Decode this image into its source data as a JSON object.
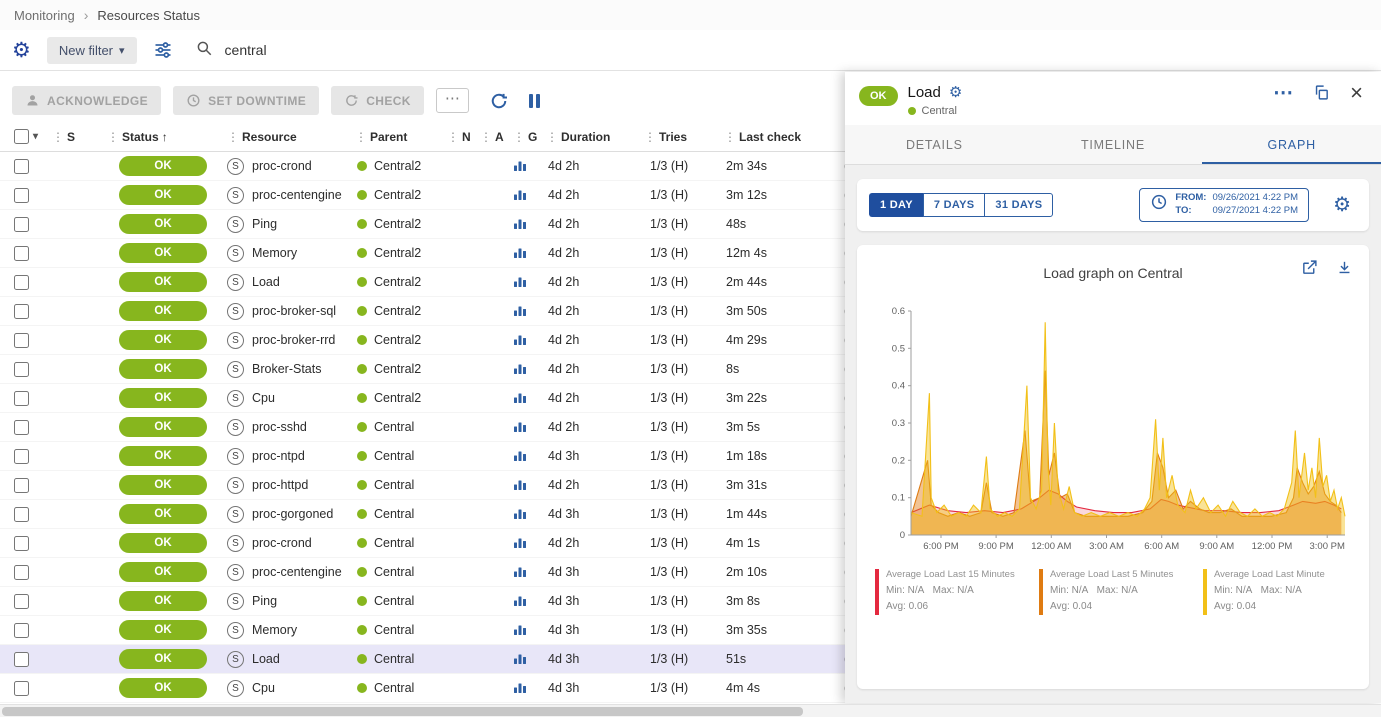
{
  "colors": {
    "accent": "#2e5fa3",
    "accent_dark": "#1f4e9e",
    "ok_green": "#87b61e",
    "selected_row": "#e8e6f8"
  },
  "icons": {
    "grip": "⋮",
    "caret": "▾",
    "sort_asc": "↑",
    "more": "⋯",
    "close": "×",
    "gear": "⚙",
    "service_badge": "S",
    "separator": "›"
  },
  "breadcrumb": {
    "items": [
      {
        "label": "Monitoring"
      },
      {
        "label": "Resources Status"
      }
    ]
  },
  "filter_bar": {
    "new_filter_label": "New filter",
    "search_value": "central"
  },
  "toolbar": {
    "acknowledge_label": "ACKNOWLEDGE",
    "set_downtime_label": "SET DOWNTIME",
    "check_label": "CHECK"
  },
  "table": {
    "columns": [
      {
        "label": "S"
      },
      {
        "label": "Status",
        "sorted": true
      },
      {
        "label": "Resource"
      },
      {
        "label": "Parent"
      },
      {
        "label": "N"
      },
      {
        "label": "A"
      },
      {
        "label": "G"
      },
      {
        "label": "Duration"
      },
      {
        "label": "Tries"
      },
      {
        "label": "Last check"
      },
      {
        "label": ""
      }
    ],
    "rows": [
      {
        "status": "OK",
        "resource": "proc-crond",
        "parent": "Central2",
        "duration": "4d 2h",
        "tries": "1/3 (H)",
        "last_check": "2m 34s",
        "info": "(",
        "selected": false
      },
      {
        "status": "OK",
        "resource": "proc-centengine",
        "parent": "Central2",
        "duration": "4d 2h",
        "tries": "1/3 (H)",
        "last_check": "3m 12s",
        "info": "(",
        "selected": false
      },
      {
        "status": "OK",
        "resource": "Ping",
        "parent": "Central2",
        "duration": "4d 2h",
        "tries": "1/3 (H)",
        "last_check": "48s",
        "info": "(",
        "selected": false
      },
      {
        "status": "OK",
        "resource": "Memory",
        "parent": "Central2",
        "duration": "4d 2h",
        "tries": "1/3 (H)",
        "last_check": "12m 4s",
        "info": "(",
        "selected": false
      },
      {
        "status": "OK",
        "resource": "Load",
        "parent": "Central2",
        "duration": "4d 2h",
        "tries": "1/3 (H)",
        "last_check": "2m 44s",
        "info": "(",
        "selected": false
      },
      {
        "status": "OK",
        "resource": "proc-broker-sql",
        "parent": "Central2",
        "duration": "4d 2h",
        "tries": "1/3 (H)",
        "last_check": "3m 50s",
        "info": "(",
        "selected": false
      },
      {
        "status": "OK",
        "resource": "proc-broker-rrd",
        "parent": "Central2",
        "duration": "4d 2h",
        "tries": "1/3 (H)",
        "last_check": "4m 29s",
        "info": "(",
        "selected": false
      },
      {
        "status": "OK",
        "resource": "Broker-Stats",
        "parent": "Central2",
        "duration": "4d 2h",
        "tries": "1/3 (H)",
        "last_check": "8s",
        "info": "(",
        "selected": false
      },
      {
        "status": "OK",
        "resource": "Cpu",
        "parent": "Central2",
        "duration": "4d 2h",
        "tries": "1/3 (H)",
        "last_check": "3m 22s",
        "info": "(",
        "selected": false
      },
      {
        "status": "OK",
        "resource": "proc-sshd",
        "parent": "Central",
        "duration": "4d 2h",
        "tries": "1/3 (H)",
        "last_check": "3m 5s",
        "info": "(",
        "selected": false
      },
      {
        "status": "OK",
        "resource": "proc-ntpd",
        "parent": "Central",
        "duration": "4d 3h",
        "tries": "1/3 (H)",
        "last_check": "1m 18s",
        "info": "(",
        "selected": false
      },
      {
        "status": "OK",
        "resource": "proc-httpd",
        "parent": "Central",
        "duration": "4d 2h",
        "tries": "1/3 (H)",
        "last_check": "3m 31s",
        "info": "(",
        "selected": false
      },
      {
        "status": "OK",
        "resource": "proc-gorgoned",
        "parent": "Central",
        "duration": "4d 3h",
        "tries": "1/3 (H)",
        "last_check": "1m 44s",
        "info": "(",
        "selected": false
      },
      {
        "status": "OK",
        "resource": "proc-crond",
        "parent": "Central",
        "duration": "4d 2h",
        "tries": "1/3 (H)",
        "last_check": "4m 1s",
        "info": "(",
        "selected": false
      },
      {
        "status": "OK",
        "resource": "proc-centengine",
        "parent": "Central",
        "duration": "4d 3h",
        "tries": "1/3 (H)",
        "last_check": "2m 10s",
        "info": "(",
        "selected": false
      },
      {
        "status": "OK",
        "resource": "Ping",
        "parent": "Central",
        "duration": "4d 3h",
        "tries": "1/3 (H)",
        "last_check": "3m 8s",
        "info": "(",
        "selected": false
      },
      {
        "status": "OK",
        "resource": "Memory",
        "parent": "Central",
        "duration": "4d 3h",
        "tries": "1/3 (H)",
        "last_check": "3m 35s",
        "info": "(",
        "selected": false
      },
      {
        "status": "OK",
        "resource": "Load",
        "parent": "Central",
        "duration": "4d 3h",
        "tries": "1/3 (H)",
        "last_check": "51s",
        "info": "(",
        "selected": true
      },
      {
        "status": "OK",
        "resource": "Cpu",
        "parent": "Central",
        "duration": "4d 3h",
        "tries": "1/3 (H)",
        "last_check": "4m 4s",
        "info": "(",
        "selected": false
      }
    ]
  },
  "panel": {
    "status": "OK",
    "title": "Load",
    "host": "Central",
    "tabs": [
      {
        "label": "DETAILS"
      },
      {
        "label": "TIMELINE"
      },
      {
        "label": "GRAPH"
      }
    ],
    "active_tab": "GRAPH",
    "time_select": {
      "day1": "1 DAY",
      "day7": "7 DAYS",
      "day31": "31 DAYS",
      "from_label": "FROM:",
      "from_value": "09/26/2021 4:22 PM",
      "to_label": "TO:",
      "to_value": "09/27/2021 4:22 PM"
    }
  },
  "chart_data": {
    "type": "area",
    "title": "Load graph on Central",
    "xlabel": "",
    "ylabel": "",
    "ylim": [
      0,
      0.6
    ],
    "y_ticks": [
      0,
      0.1,
      0.2,
      0.3,
      0.4,
      0.5,
      0.6
    ],
    "x_max": 23.6,
    "x_ticks": [
      {
        "t": 1.63,
        "label": "6:00 PM"
      },
      {
        "t": 4.63,
        "label": "9:00 PM"
      },
      {
        "t": 7.63,
        "label": "12:00 AM"
      },
      {
        "t": 10.63,
        "label": "3:00 AM"
      },
      {
        "t": 13.63,
        "label": "6:00 AM"
      },
      {
        "t": 16.63,
        "label": "9:00 AM"
      },
      {
        "t": 19.63,
        "label": "12:00 PM"
      },
      {
        "t": 22.63,
        "label": "3:00 PM"
      }
    ],
    "series": [
      {
        "name": "Average Load Last 15 Minutes",
        "color": "#e4293f",
        "fill": "rgba(228,41,63,0.18)",
        "stats_minmax": "Min: N/A   Max: N/A",
        "stats_avg": "Avg: 0.06",
        "points": [
          [
            0,
            0.06
          ],
          [
            1,
            0.08
          ],
          [
            2,
            0.065
          ],
          [
            3,
            0.06
          ],
          [
            4,
            0.065
          ],
          [
            5,
            0.06
          ],
          [
            6,
            0.07
          ],
          [
            7,
            0.1
          ],
          [
            7.5,
            0.12
          ],
          [
            8,
            0.11
          ],
          [
            8.5,
            0.09
          ],
          [
            9,
            0.075
          ],
          [
            10,
            0.065
          ],
          [
            11,
            0.06
          ],
          [
            12,
            0.06
          ],
          [
            13,
            0.07
          ],
          [
            13.6,
            0.095
          ],
          [
            14,
            0.09
          ],
          [
            14.5,
            0.08
          ],
          [
            15,
            0.075
          ],
          [
            16,
            0.065
          ],
          [
            17,
            0.065
          ],
          [
            18,
            0.06
          ],
          [
            19,
            0.06
          ],
          [
            20,
            0.065
          ],
          [
            20.8,
            0.08
          ],
          [
            21.3,
            0.09
          ],
          [
            22,
            0.085
          ],
          [
            22.5,
            0.09
          ],
          [
            23,
            0.08
          ],
          [
            23.4,
            0.07
          ]
        ]
      },
      {
        "name": "Average Load Last 5 Minutes",
        "color": "#df7b12",
        "fill": "rgba(223,123,18,0.45)",
        "stats_minmax": "Min: N/A   Max: N/A",
        "stats_avg": "Avg: 0.04",
        "points": [
          [
            0,
            0.05
          ],
          [
            0.9,
            0.2
          ],
          [
            1.1,
            0.08
          ],
          [
            1.5,
            0.06
          ],
          [
            2,
            0.05
          ],
          [
            2.6,
            0.06
          ],
          [
            3.2,
            0.05
          ],
          [
            3.8,
            0.06
          ],
          [
            4.1,
            0.14
          ],
          [
            4.4,
            0.06
          ],
          [
            5,
            0.05
          ],
          [
            5.6,
            0.06
          ],
          [
            6.2,
            0.28
          ],
          [
            6.5,
            0.09
          ],
          [
            7,
            0.1
          ],
          [
            7.3,
            0.44
          ],
          [
            7.5,
            0.16
          ],
          [
            7.8,
            0.22
          ],
          [
            8.1,
            0.1
          ],
          [
            8.5,
            0.11
          ],
          [
            8.9,
            0.06
          ],
          [
            9.5,
            0.05
          ],
          [
            10.2,
            0.05
          ],
          [
            11,
            0.05
          ],
          [
            11.8,
            0.05
          ],
          [
            12.6,
            0.06
          ],
          [
            13.1,
            0.09
          ],
          [
            13.4,
            0.22
          ],
          [
            13.7,
            0.18
          ],
          [
            14,
            0.1
          ],
          [
            14.4,
            0.12
          ],
          [
            14.8,
            0.07
          ],
          [
            15.2,
            0.09
          ],
          [
            15.7,
            0.07
          ],
          [
            16.2,
            0.06
          ],
          [
            16.8,
            0.06
          ],
          [
            17.4,
            0.07
          ],
          [
            18,
            0.05
          ],
          [
            18.8,
            0.05
          ],
          [
            19.6,
            0.05
          ],
          [
            20.4,
            0.06
          ],
          [
            20.8,
            0.1
          ],
          [
            21,
            0.18
          ],
          [
            21.3,
            0.14
          ],
          [
            21.6,
            0.11
          ],
          [
            21.9,
            0.13
          ],
          [
            22.2,
            0.17
          ],
          [
            22.5,
            0.11
          ],
          [
            22.8,
            0.09
          ],
          [
            23.1,
            0.08
          ],
          [
            23.4,
            0.06
          ]
        ]
      },
      {
        "name": "Average Load Last Minute",
        "color": "#f2c018",
        "fill": "rgba(242,192,24,0.45)",
        "stats_minmax": "Min: N/A   Max: N/A",
        "stats_avg": "Avg: 0.04",
        "points": [
          [
            0,
            0.06
          ],
          [
            0.6,
            0.05
          ],
          [
            0.9,
            0.3
          ],
          [
            1,
            0.38
          ],
          [
            1.1,
            0.1
          ],
          [
            1.4,
            0.06
          ],
          [
            1.8,
            0.08
          ],
          [
            2.2,
            0.05
          ],
          [
            2.6,
            0.06
          ],
          [
            3,
            0.05
          ],
          [
            3.4,
            0.08
          ],
          [
            3.8,
            0.06
          ],
          [
            4.1,
            0.21
          ],
          [
            4.3,
            0.07
          ],
          [
            4.7,
            0.05
          ],
          [
            5.1,
            0.06
          ],
          [
            5.5,
            0.05
          ],
          [
            5.9,
            0.07
          ],
          [
            6.3,
            0.4
          ],
          [
            6.5,
            0.1
          ],
          [
            6.8,
            0.07
          ],
          [
            7.1,
            0.12
          ],
          [
            7.3,
            0.57
          ],
          [
            7.45,
            0.18
          ],
          [
            7.6,
            0.08
          ],
          [
            7.8,
            0.3
          ],
          [
            8,
            0.12
          ],
          [
            8.3,
            0.07
          ],
          [
            8.6,
            0.13
          ],
          [
            8.9,
            0.06
          ],
          [
            9.3,
            0.05
          ],
          [
            9.8,
            0.06
          ],
          [
            10.3,
            0.05
          ],
          [
            10.8,
            0.06
          ],
          [
            11.3,
            0.05
          ],
          [
            11.8,
            0.06
          ],
          [
            12.3,
            0.05
          ],
          [
            12.7,
            0.07
          ],
          [
            13,
            0.1
          ],
          [
            13.3,
            0.31
          ],
          [
            13.5,
            0.12
          ],
          [
            13.7,
            0.26
          ],
          [
            13.9,
            0.1
          ],
          [
            14.2,
            0.16
          ],
          [
            14.5,
            0.08
          ],
          [
            14.9,
            0.06
          ],
          [
            15.2,
            0.12
          ],
          [
            15.5,
            0.07
          ],
          [
            15.9,
            0.1
          ],
          [
            16.3,
            0.06
          ],
          [
            16.7,
            0.08
          ],
          [
            17.1,
            0.05
          ],
          [
            17.5,
            0.09
          ],
          [
            17.9,
            0.06
          ],
          [
            18.3,
            0.05
          ],
          [
            18.7,
            0.07
          ],
          [
            19.1,
            0.05
          ],
          [
            19.5,
            0.06
          ],
          [
            19.9,
            0.05
          ],
          [
            20.3,
            0.07
          ],
          [
            20.7,
            0.14
          ],
          [
            20.9,
            0.28
          ],
          [
            21.1,
            0.1
          ],
          [
            21.4,
            0.22
          ],
          [
            21.6,
            0.12
          ],
          [
            21.8,
            0.18
          ],
          [
            22,
            0.1
          ],
          [
            22.2,
            0.26
          ],
          [
            22.4,
            0.13
          ],
          [
            22.6,
            0.16
          ],
          [
            22.8,
            0.09
          ],
          [
            23,
            0.12
          ],
          [
            23.2,
            0.07
          ],
          [
            23.4,
            0.1
          ],
          [
            23.6,
            0.05
          ]
        ]
      }
    ],
    "legend_position": "bottom",
    "grid": false
  }
}
